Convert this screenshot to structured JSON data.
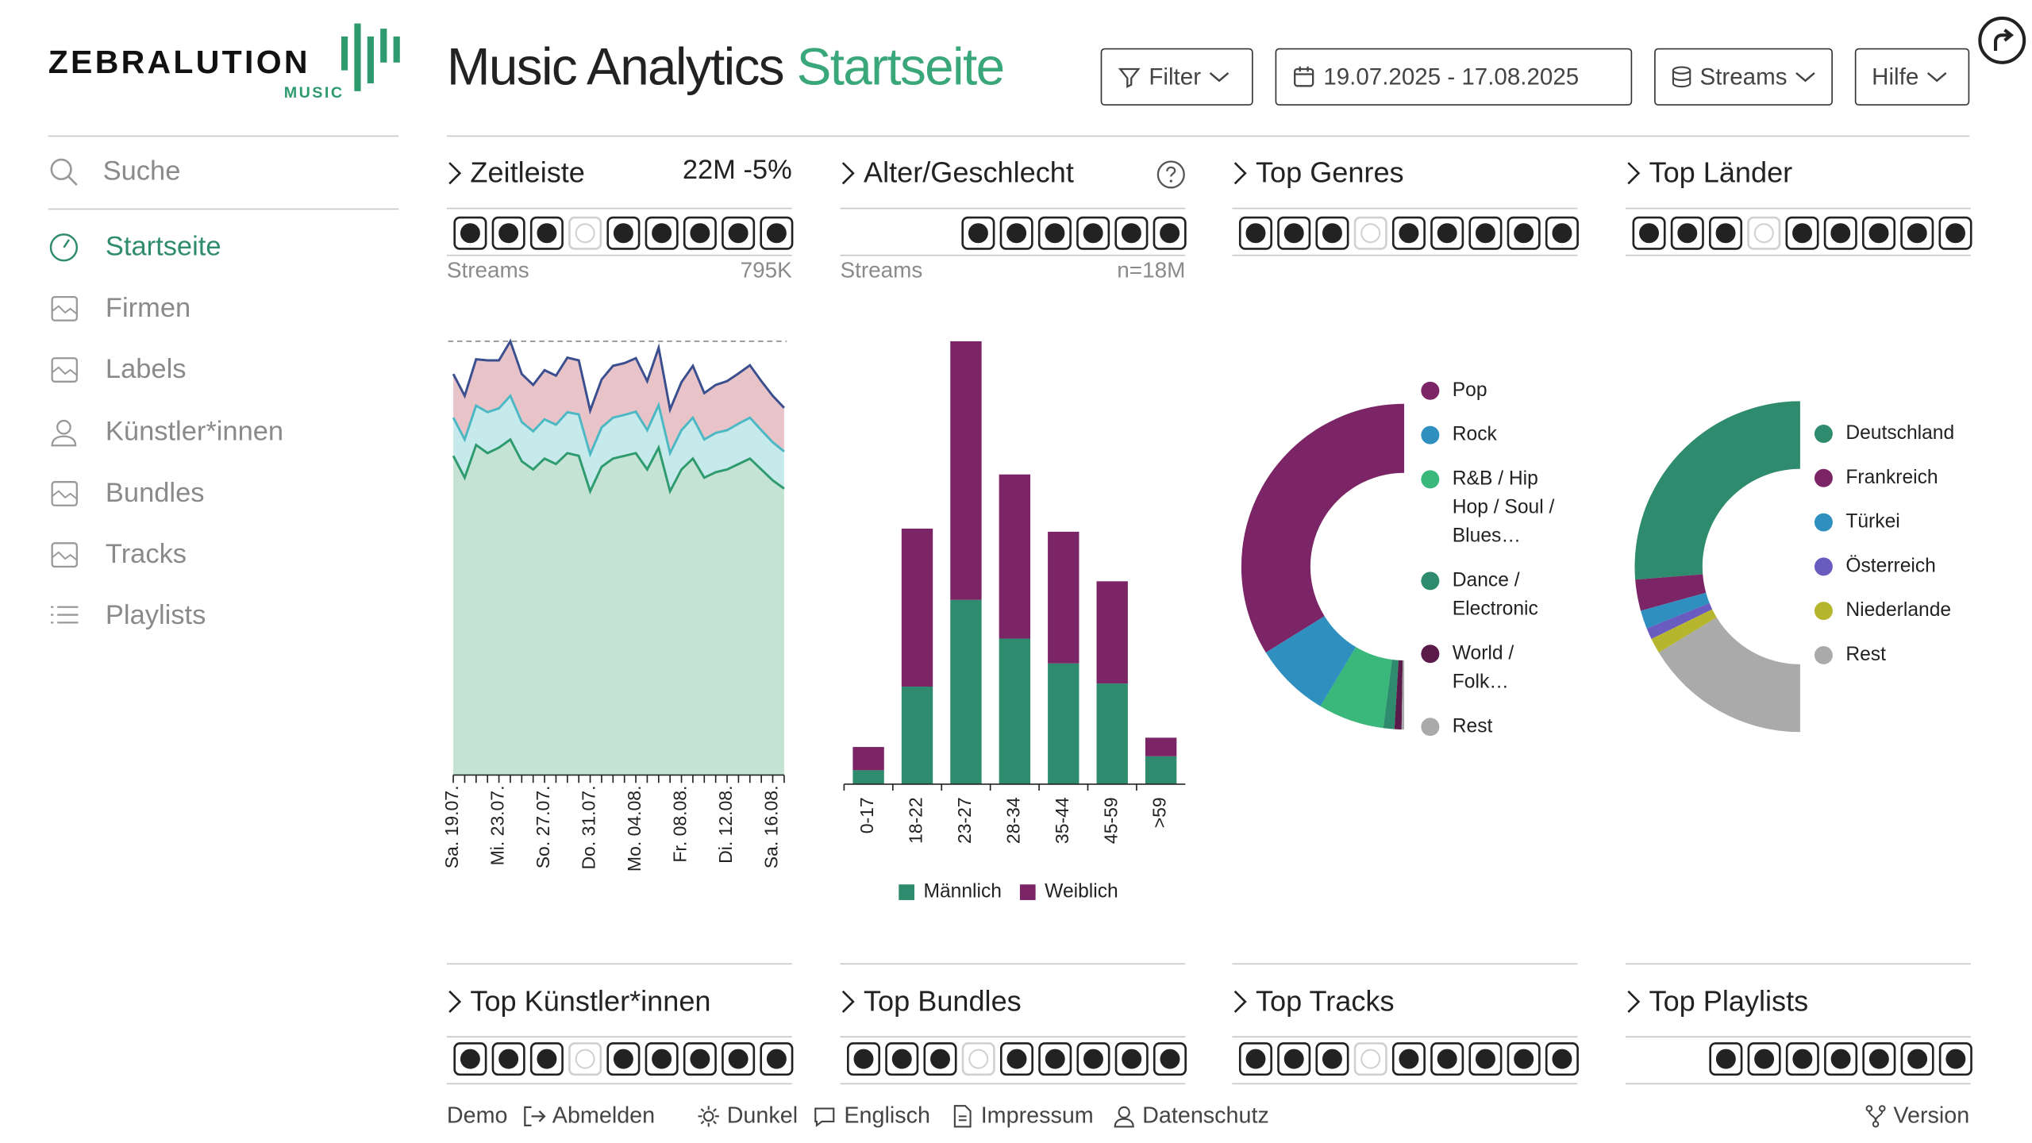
{
  "brand": {
    "name": "ZEBRALUTION",
    "sub": "MUSIC"
  },
  "header": {
    "title": "Music Analytics",
    "title_accent": "Startseite",
    "filter": "Filter",
    "date_range": "19.07.2025 - 17.08.2025",
    "metric": "Streams",
    "help": "Hilfe"
  },
  "sidebar": {
    "search": "Suche",
    "items": [
      "Startseite",
      "Firmen",
      "Labels",
      "Künstler*innen",
      "Bundles",
      "Tracks",
      "Playlists"
    ]
  },
  "panels": [
    "Top Künstler*innen",
    "Top Bundles",
    "Top Tracks",
    "Top Playlists"
  ],
  "footer": {
    "demo": "Demo",
    "logout": "Abmelden",
    "theme": "Dunkel",
    "language": "Englisch",
    "imprint": "Impressum",
    "privacy": "Datenschutz",
    "version": "Version"
  },
  "chart_data": [
    {
      "type": "area",
      "stacked": true,
      "title": "Zeitleiste",
      "summary": "22M -5%",
      "subtitle": "Streams",
      "reference": {
        "value": 795000,
        "label": "795K"
      },
      "categories": [
        "Sa. 19.07.",
        null,
        null,
        null,
        "Mi. 23.07.",
        null,
        null,
        null,
        "So. 27.07.",
        null,
        null,
        null,
        "Do. 31.07.",
        null,
        null,
        null,
        "Mo. 04.08.",
        null,
        null,
        null,
        "Fr. 08.08.",
        null,
        null,
        null,
        "Di. 12.08.",
        null,
        null,
        null,
        "Sa. 16.08.",
        null
      ],
      "series": [
        {
          "color": "#c4e3d4",
          "line_color": "#2e9b6e",
          "values": [
            585000,
            545000,
            605000,
            590000,
            600000,
            615000,
            575000,
            560000,
            580000,
            570000,
            590000,
            585000,
            520000,
            565000,
            580000,
            585000,
            590000,
            560000,
            600000,
            520000,
            560000,
            580000,
            545000,
            555000,
            560000,
            570000,
            580000,
            560000,
            540000,
            525000
          ]
        },
        {
          "color": "#c6e9eb",
          "line_color": "#4bb8c4",
          "values": [
            70000,
            70000,
            72000,
            75000,
            72000,
            80000,
            72000,
            70000,
            72000,
            72000,
            75000,
            76000,
            68000,
            72000,
            75000,
            75000,
            76000,
            72000,
            78000,
            70000,
            72000,
            75000,
            70000,
            72000,
            72000,
            74000,
            75000,
            72000,
            70000,
            68000
          ]
        },
        {
          "color": "#e8c4c9",
          "line_color": "#3b4f8f",
          "values": [
            80000,
            80000,
            85000,
            95000,
            88000,
            100000,
            88000,
            85000,
            90000,
            90000,
            100000,
            99000,
            80000,
            88000,
            95000,
            95000,
            98000,
            90000,
            105000,
            80000,
            88000,
            95000,
            85000,
            88000,
            90000,
            92000,
            96000,
            90000,
            85000,
            80000
          ]
        }
      ],
      "ylim": [
        0,
        795000
      ]
    },
    {
      "type": "bar",
      "stacked": true,
      "title": "Alter/Geschlecht",
      "subtitle": "Streams",
      "note": "n=18M",
      "categories": [
        "0-17",
        "18-22",
        "23-27",
        "28-34",
        "35-44",
        "45-59",
        ">59"
      ],
      "series": [
        {
          "name": "Männlich",
          "color": "#2e8b6e",
          "values": [
            0.9,
            6.3,
            11.9,
            9.4,
            7.8,
            6.5,
            1.8
          ]
        },
        {
          "name": "Weiblich",
          "color": "#7b2566",
          "values": [
            1.5,
            10.2,
            16.7,
            10.6,
            8.5,
            6.6,
            1.2
          ]
        }
      ],
      "ylim": [
        0,
        28.6
      ]
    },
    {
      "type": "donut",
      "title": "Top Genres",
      "categories": [
        "Pop",
        "Rock",
        "R&B / Hip Hop / Soul / Blues…",
        "Dance / Electronic",
        "World / Folk…",
        "Rest"
      ],
      "values": [
        67.7,
        15.1,
        13.1,
        2.2,
        1.4,
        0.5
      ],
      "colors": [
        "#7b2566",
        "#2f8fbf",
        "#3ab77a",
        "#2e8b6e",
        "#5a1a4a",
        "#aaaaaa"
      ]
    },
    {
      "type": "donut",
      "title": "Top Länder",
      "categories": [
        "Deutschland",
        "Frankreich",
        "Türkei",
        "Österreich",
        "Niederlande",
        "Rest"
      ],
      "values": [
        52.5,
        6.1,
        3.6,
        2.2,
        3.0,
        32.6
      ],
      "colors": [
        "#2e8b6e",
        "#7b2566",
        "#2f8fbf",
        "#6a5bc0",
        "#b5b52e",
        "#aaaaaa"
      ]
    }
  ]
}
